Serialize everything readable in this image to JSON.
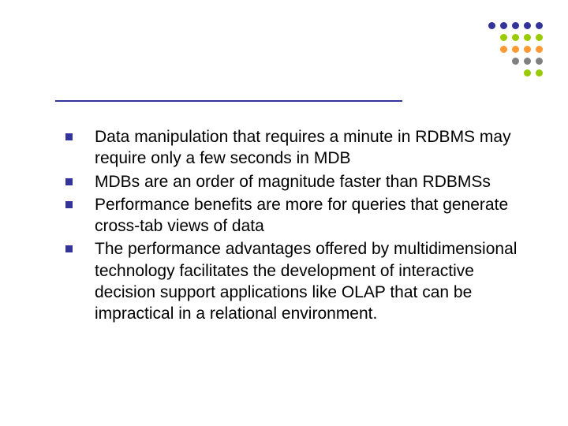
{
  "slide": {
    "bullets": [
      "Data manipulation that requires a minute in RDBMS may require only a few seconds in MDB",
      "MDBs are an order of magnitude faster than RDBMSs",
      "Performance benefits are more for queries that generate cross-tab views of data",
      "The performance advantages offered by multidimensional technology facilitates the development of interactive decision support applications like OLAP that can be impractical in a relational environment."
    ]
  },
  "styling": {
    "divider_color": "#333399",
    "bullet_color": "#333399",
    "text_color": "#000000",
    "background_color": "#ffffff",
    "text_fontsize": 21,
    "dot_colors": {
      "row1": "#333399",
      "row2": "#99cc00",
      "row3": "#ff9933",
      "row4": "#808080",
      "row5": "#99cc00"
    },
    "dot_pattern": [
      [
        1,
        1,
        1,
        1,
        1
      ],
      [
        0,
        1,
        1,
        1,
        1
      ],
      [
        0,
        1,
        1,
        1,
        1
      ],
      [
        0,
        0,
        1,
        1,
        1
      ],
      [
        0,
        0,
        0,
        1,
        1
      ]
    ]
  }
}
